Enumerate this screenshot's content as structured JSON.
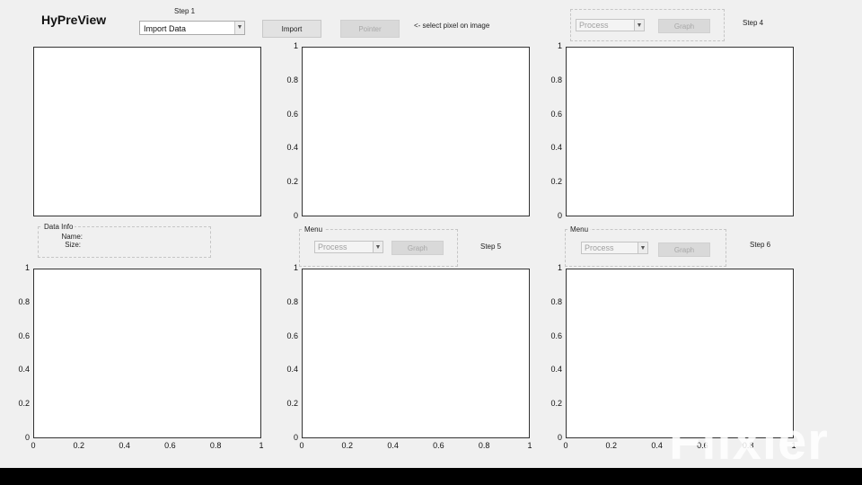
{
  "app": {
    "title": "HyPreView"
  },
  "steps": {
    "step1": "Step 1",
    "step4": "Step 4",
    "step5": "Step 5",
    "step6": "Step 6"
  },
  "toolbar": {
    "data_source": "Import Data",
    "import_label": "Import",
    "pointer_label": "Pointer",
    "pointer_hint": "<- select pixel on image"
  },
  "menus": {
    "top_right": {
      "process": "Process",
      "graph": "Graph"
    },
    "mid": {
      "title": "Menu",
      "process": "Process",
      "graph": "Graph"
    },
    "right": {
      "title": "Menu",
      "process": "Process",
      "graph": "Graph"
    }
  },
  "data_info": {
    "title": "Data Info",
    "name_label": "Name:",
    "size_label": "Size:"
  },
  "axes": {
    "y_ticks": [
      "1",
      "0.8",
      "0.6",
      "0.4",
      "0.2",
      "0"
    ],
    "x_ticks": [
      "0",
      "0.2",
      "0.4",
      "0.6",
      "0.8",
      "1"
    ]
  },
  "watermark": "Flixier"
}
